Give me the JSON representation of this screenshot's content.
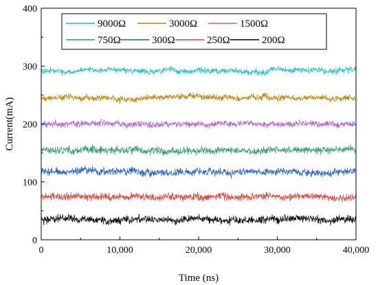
{
  "chart_data": {
    "type": "line",
    "xlabel": "Time (ns)",
    "ylabel": "Current(mA)",
    "xlim": [
      0,
      40000
    ],
    "ylim": [
      0,
      400
    ],
    "xticks": [
      0,
      10000,
      20000,
      30000,
      40000
    ],
    "xtick_labels": [
      "0",
      "10,000",
      "20,000",
      "30,000",
      "40,000"
    ],
    "yticks": [
      0,
      100,
      200,
      300,
      400
    ],
    "ytick_labels": [
      "0",
      "100",
      "200",
      "300",
      "400"
    ],
    "grid": false,
    "legend_placement": "top",
    "series": [
      {
        "name": "9000Ω",
        "color": "#17becf",
        "mean": 292,
        "noise": 4
      },
      {
        "name": "3000Ω",
        "color": "#b8860b",
        "mean": 245,
        "noise": 4
      },
      {
        "name": "1500Ω",
        "color": "#b05cd6",
        "mean": 200,
        "noise": 4
      },
      {
        "name": "750Ω",
        "color": "#2e9e6b",
        "mean": 155,
        "noise": 5
      },
      {
        "name": "300Ω",
        "color": "#1f5fd1",
        "mean": 117,
        "noise": 5
      },
      {
        "name": "250Ω",
        "color": "#e0403a",
        "mean": 74,
        "noise": 5
      },
      {
        "name": "200Ω",
        "color": "#000000",
        "mean": 34,
        "noise": 5
      }
    ]
  }
}
